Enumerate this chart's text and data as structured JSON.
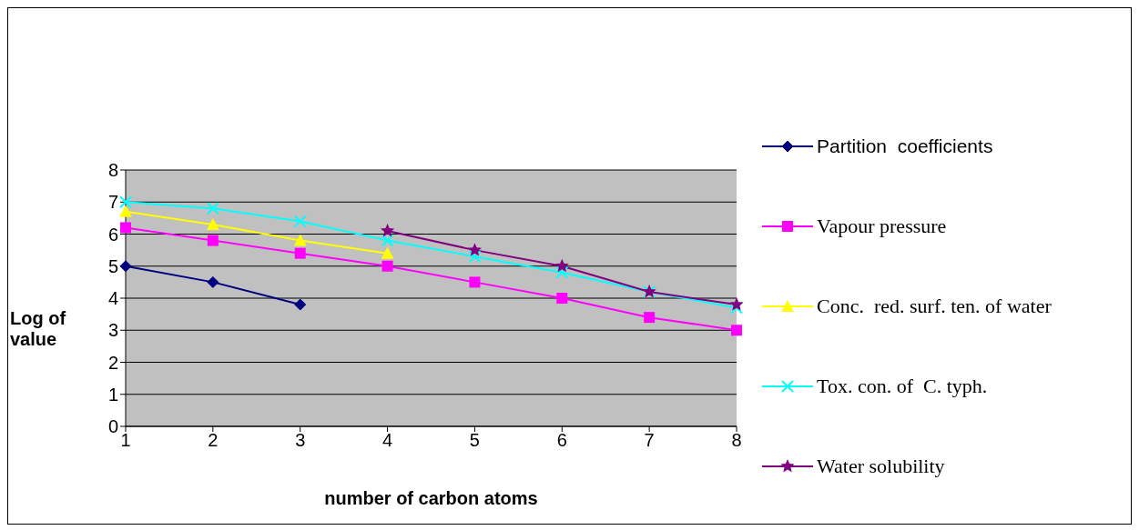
{
  "chart_data": {
    "type": "line",
    "xlabel": "number of carbon atoms",
    "ylabel": "Log of value",
    "categories": [
      "1",
      "2",
      "3",
      "4",
      "5",
      "6",
      "7",
      "8"
    ],
    "series": [
      {
        "name": "Partition  coefficients",
        "color": "#000080",
        "marker": "diamond",
        "values": [
          5.0,
          4.5,
          3.8,
          null,
          null,
          null,
          null,
          null
        ]
      },
      {
        "name": "Vapour pressure",
        "color": "#ff00ff",
        "marker": "square",
        "values": [
          6.2,
          5.8,
          5.4,
          5.0,
          4.5,
          4.0,
          3.4,
          3.0
        ]
      },
      {
        "name": "Conc.  red. surf. ten. of water",
        "color": "#ffff00",
        "marker": "triangle",
        "values": [
          6.7,
          6.3,
          5.8,
          5.4,
          null,
          null,
          null,
          null
        ]
      },
      {
        "name": "Tox. con. of  C. typh.",
        "color": "#00ffff",
        "marker": "cross",
        "values": [
          7.0,
          6.8,
          6.4,
          5.8,
          5.3,
          4.8,
          4.2,
          3.7
        ]
      },
      {
        "name": "Water solubility",
        "color": "#800080",
        "marker": "star",
        "values": [
          null,
          null,
          null,
          6.1,
          5.5,
          5.0,
          4.2,
          3.8
        ]
      }
    ],
    "ylim": [
      0,
      8
    ],
    "yticks": [
      0,
      1,
      2,
      3,
      4,
      5,
      6,
      7,
      8
    ],
    "grid": "y",
    "legend": "right",
    "line_style": "solid"
  }
}
